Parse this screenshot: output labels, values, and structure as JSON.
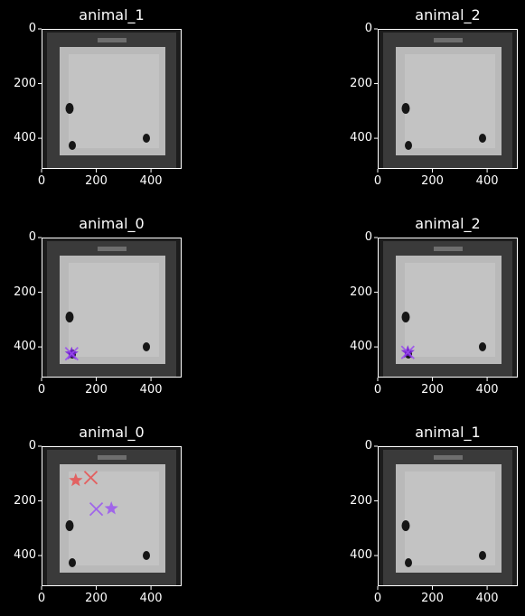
{
  "panels": [
    {
      "title": "animal_1",
      "xticks": [
        "0",
        "200",
        "400"
      ],
      "yticks": [
        "0",
        "200",
        "400"
      ],
      "markers": []
    },
    {
      "title": "animal_2",
      "xticks": [
        "0",
        "200",
        "400"
      ],
      "yticks": [
        "0",
        "200",
        "400"
      ],
      "markers": []
    },
    {
      "title": "animal_0",
      "xticks": [
        "0",
        "200",
        "400"
      ],
      "yticks": [
        "0",
        "200",
        "400"
      ],
      "markers": [
        {
          "shape": "star",
          "x": 110,
          "y": 425,
          "color": "#7a1fe0"
        },
        {
          "shape": "x",
          "x": 110,
          "y": 425,
          "color": "#9a4cf0"
        }
      ]
    },
    {
      "title": "animal_2",
      "xticks": [
        "0",
        "200",
        "400"
      ],
      "yticks": [
        "0",
        "200",
        "400"
      ],
      "markers": [
        {
          "shape": "star",
          "x": 110,
          "y": 420,
          "color": "#7a1fe0"
        },
        {
          "shape": "x",
          "x": 110,
          "y": 420,
          "color": "#9a4cf0"
        }
      ]
    },
    {
      "title": "animal_0",
      "xticks": [
        "0",
        "200",
        "400"
      ],
      "yticks": [
        "0",
        "200",
        "400"
      ],
      "markers": [
        {
          "shape": "star",
          "x": 125,
          "y": 125,
          "color": "#e85050"
        },
        {
          "shape": "x",
          "x": 180,
          "y": 115,
          "color": "#e85050"
        },
        {
          "shape": "x",
          "x": 200,
          "y": 230,
          "color": "#9a55f0"
        },
        {
          "shape": "star",
          "x": 255,
          "y": 228,
          "color": "#9a55f0"
        }
      ]
    },
    {
      "title": "animal_1",
      "xticks": [
        "0",
        "200",
        "400"
      ],
      "yticks": [
        "0",
        "200",
        "400"
      ],
      "markers": []
    }
  ],
  "image_extent": [
    0,
    512
  ],
  "axis_color": "#ffffff",
  "background": "#000000"
}
